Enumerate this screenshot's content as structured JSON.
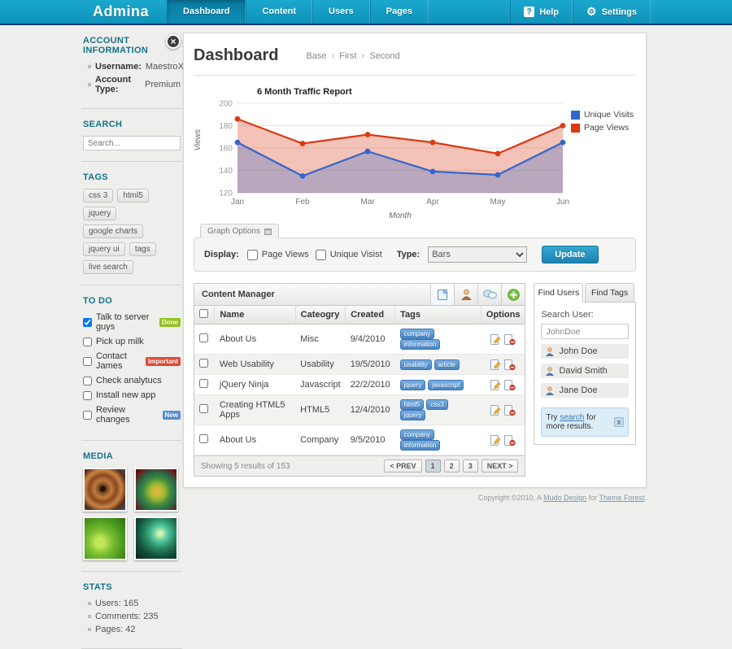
{
  "nav": {
    "brand": "Admina",
    "tabs": [
      {
        "label": "Dashboard",
        "active": true
      },
      {
        "label": "Content",
        "active": false
      },
      {
        "label": "Users",
        "active": false
      },
      {
        "label": "Pages",
        "active": false
      }
    ],
    "help_label": "Help",
    "help_glyph": "?",
    "settings_label": "Settings",
    "bar_color": "#149fc6"
  },
  "sidebar": {
    "close_glyph": "×",
    "account": {
      "heading": "ACCOUNT INFORMATION",
      "items": [
        {
          "label": "Username:",
          "value": "MaestroX"
        },
        {
          "label": "Account Type:",
          "value": "Premium"
        }
      ]
    },
    "search": {
      "heading": "SEARCH",
      "placeholder": "Search..."
    },
    "tags": {
      "heading": "TAGS",
      "items": [
        "css 3",
        "html5",
        "jquery",
        "google charts",
        "jquery ui",
        "tags",
        "live search"
      ]
    },
    "todo": {
      "heading": "TO DO",
      "items": [
        {
          "label": "Talk to server guys",
          "checked": true,
          "badge": "Done",
          "badge_color": "#94c421"
        },
        {
          "label": "Pick up milk",
          "checked": false
        },
        {
          "label": "Contact James",
          "checked": false,
          "badge": "Important",
          "badge_color": "#e04b3a"
        },
        {
          "label": "Check analytucs",
          "checked": false
        },
        {
          "label": "Install new app",
          "checked": false
        },
        {
          "label": "Review changes",
          "checked": false,
          "badge": "New",
          "badge_color": "#5590d2"
        }
      ]
    },
    "media": {
      "heading": "MEDIA",
      "items": [
        {
          "name": "fractal-orange"
        },
        {
          "name": "fractal-green-flower"
        },
        {
          "name": "green-abstract"
        },
        {
          "name": "green-swirl"
        }
      ]
    },
    "stats": {
      "heading": "STATS",
      "items": [
        {
          "label": "Users:",
          "value": "165"
        },
        {
          "label": "Comments:",
          "value": "235"
        },
        {
          "label": "Pages:",
          "value": "42"
        }
      ]
    }
  },
  "main": {
    "title": "Dashboard",
    "breadcrumb": {
      "items": [
        "Base",
        "First",
        "Second"
      ],
      "separator": "›"
    },
    "graph_options": {
      "tab_label": "Graph Options",
      "display_label": "Display:",
      "checkboxes": [
        {
          "label": "Page Views",
          "checked": false
        },
        {
          "label": "Unique Visist",
          "checked": false
        }
      ],
      "type_label": "Type:",
      "type_options": [
        "Bars"
      ],
      "type_selected": "Bars",
      "update_label": "Update"
    },
    "content_manager": {
      "title": "Content Manager",
      "header_icons": [
        "document-icon",
        "user-icon",
        "comments-icon",
        "add-icon"
      ],
      "columns": [
        "Name",
        "Cateogry",
        "Created",
        "Tags",
        "Options"
      ],
      "rows": [
        {
          "name": "About Us",
          "category": "Misc",
          "created": "9/4/2010",
          "tags": [
            "company",
            "information"
          ]
        },
        {
          "name": "Web Usability",
          "category": "Usability",
          "created": "19/5/2010",
          "tags": [
            "usability",
            "article"
          ]
        },
        {
          "name": "jQuery Ninja",
          "category": "Javascript",
          "created": "22/2/2010",
          "tags": [
            "jquery",
            "javascript"
          ]
        },
        {
          "name": "Creating HTML5 Apps",
          "category": "HTML5",
          "created": "12/4/2010",
          "tags": [
            "html5",
            "css3",
            "jquery"
          ]
        },
        {
          "name": "About Us",
          "category": "Company",
          "created": "9/5/2010",
          "tags": [
            "company",
            "information"
          ]
        }
      ],
      "summary": "Showing 5 results of 153",
      "pagination": [
        {
          "label": "< PREV",
          "active": false
        },
        {
          "label": "1",
          "active": true
        },
        {
          "label": "2",
          "active": false
        },
        {
          "label": "3",
          "active": false
        },
        {
          "label": "NEXT >",
          "active": false
        }
      ]
    },
    "find_panel": {
      "tabs": [
        {
          "label": "Find Users",
          "active": true
        },
        {
          "label": "Find Tags",
          "active": false
        }
      ],
      "search_label": "Search User:",
      "search_value": "JohnDoe",
      "users": [
        "John Doe",
        "David Smith",
        "Jane Doe"
      ],
      "note": {
        "prefix": "Try ",
        "link": "search",
        "suffix": " for more results.",
        "close_glyph": "x"
      }
    },
    "footer": {
      "prefix": "Copyright ©2010, A ",
      "link1": "Mudo Design",
      "middle": " for ",
      "link2": "Theme Forest",
      "suffix": "."
    }
  },
  "chart_data": {
    "type": "area",
    "title": "6 Month Traffic Report",
    "xlabel": "Month",
    "ylabel": "Views",
    "categories": [
      "Jan",
      "Feb",
      "Mar",
      "Apr",
      "May",
      "Jun"
    ],
    "ylim": [
      120,
      200
    ],
    "ytick_step": 20,
    "grid": true,
    "legend_position": "right",
    "fill_opacity": 0.3,
    "series": [
      {
        "name": "Unique Visits",
        "color": "#3366cc",
        "values": [
          165,
          135,
          157,
          139,
          136,
          165
        ]
      },
      {
        "name": "Page Views",
        "color": "#dc3912",
        "values": [
          186,
          164,
          172,
          165,
          155,
          180
        ]
      }
    ]
  }
}
